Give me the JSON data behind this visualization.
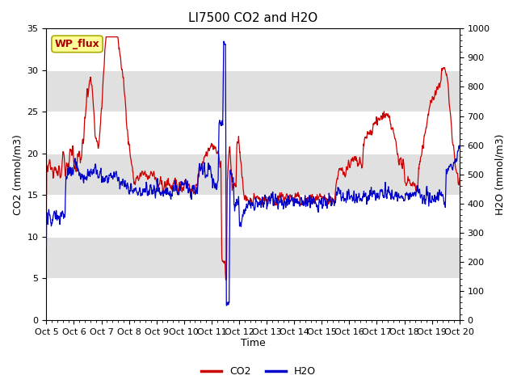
{
  "title": "LI7500 CO2 and H2O",
  "xlabel": "Time",
  "ylabel_left": "CO2 (mmol/m3)",
  "ylabel_right": "H2O (mmol/m3)",
  "co2_ylim": [
    0,
    35
  ],
  "h2o_ylim": [
    0,
    1000
  ],
  "x_tick_labels": [
    "Oct 5",
    "Oct 6",
    "Oct 7",
    "Oct 8",
    "Oct 9",
    "Oct 10",
    "Oct 11",
    "Oct 12",
    "Oct 13",
    "Oct 14",
    "Oct 15",
    "Oct 16",
    "Oct 17",
    "Oct 18",
    "Oct 19",
    "Oct 20"
  ],
  "co2_yticks": [
    0,
    5,
    10,
    15,
    20,
    25,
    30,
    35
  ],
  "h2o_yticks": [
    0,
    100,
    200,
    300,
    400,
    500,
    600,
    700,
    800,
    900,
    1000
  ],
  "co2_color": "#cc0000",
  "h2o_color": "#0000cc",
  "background_color": "#ffffff",
  "band_colors": [
    "#ffffff",
    "#e0e0e0"
  ],
  "grid_color": "#ffffff",
  "annotation_label": "WP_flux",
  "annotation_bg": "#ffff99",
  "annotation_border": "#aaaa00",
  "title_fontsize": 11,
  "label_fontsize": 9,
  "tick_fontsize": 8,
  "legend_fontsize": 9,
  "line_width": 0.9,
  "seed": 42
}
